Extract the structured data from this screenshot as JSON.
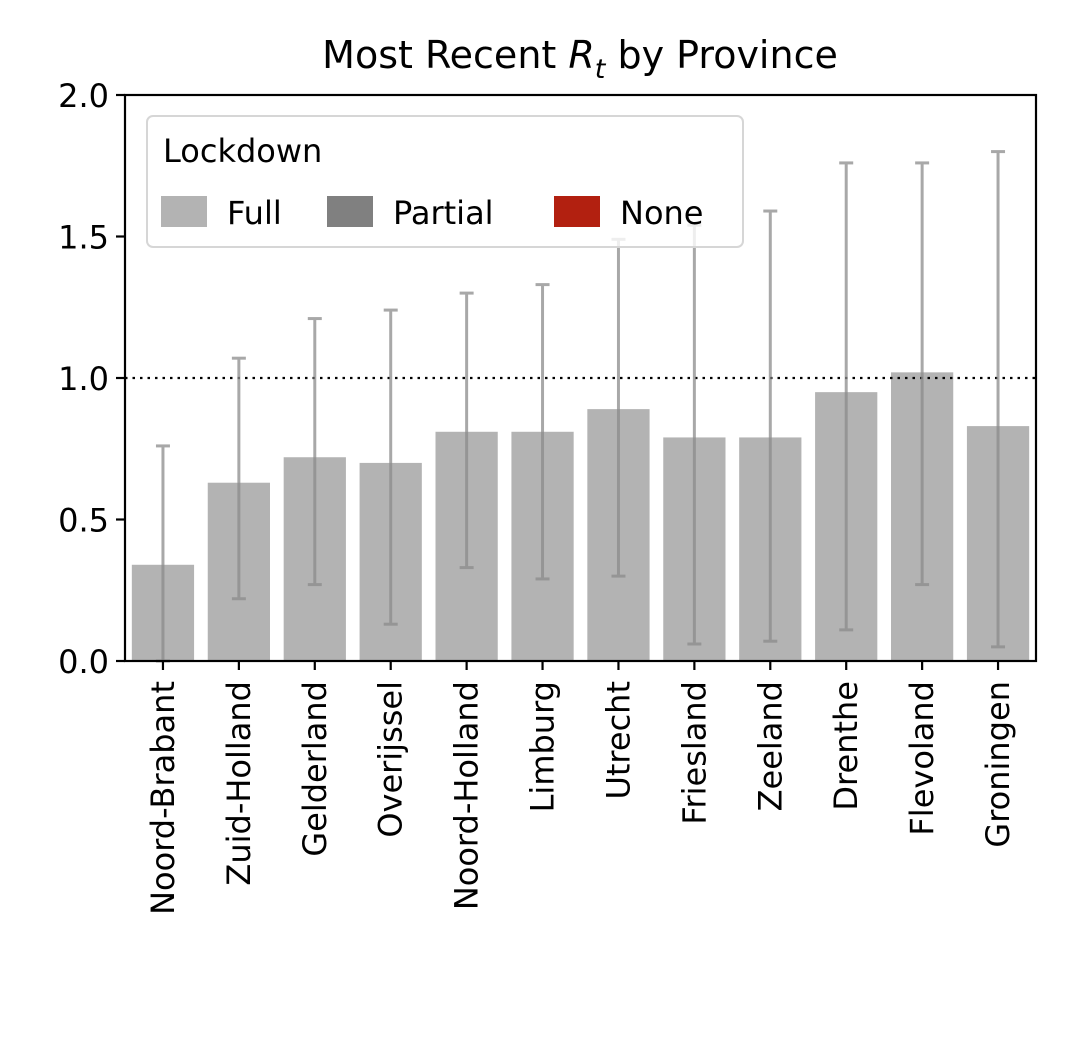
{
  "chart_data": {
    "type": "bar",
    "title": {
      "prefix": "Most Recent ",
      "symbol": "R",
      "subscript": "t",
      "suffix": " by Province"
    },
    "xlabel": "",
    "ylabel": "",
    "ylim": [
      0,
      2.0
    ],
    "yticks": [
      "0.0",
      "0.5",
      "1.0",
      "1.5",
      "2.0"
    ],
    "reference_line": {
      "y": 1.0,
      "style": "dotted"
    },
    "grid": false,
    "categories": [
      "Noord-Brabant",
      "Zuid-Holland",
      "Gelderland",
      "Overijssel",
      "Noord-Holland",
      "Limburg",
      "Utrecht",
      "Friesland",
      "Zeeland",
      "Drenthe",
      "Flevoland",
      "Groningen"
    ],
    "values": [
      0.34,
      0.63,
      0.72,
      0.7,
      0.81,
      0.81,
      0.89,
      0.79,
      0.79,
      0.95,
      1.02,
      0.83
    ],
    "error_low": [
      0.0,
      0.22,
      0.27,
      0.13,
      0.33,
      0.29,
      0.3,
      0.06,
      0.07,
      0.11,
      0.27,
      0.05
    ],
    "error_high": [
      0.76,
      1.07,
      1.21,
      1.24,
      1.3,
      1.33,
      1.49,
      1.54,
      1.59,
      1.76,
      1.76,
      1.8
    ],
    "lockdown": [
      "Full",
      "Full",
      "Full",
      "Full",
      "Full",
      "Full",
      "Full",
      "Full",
      "Full",
      "Full",
      "Full",
      "Full"
    ],
    "legend": {
      "title": "Lockdown",
      "placement": "top-left",
      "entries": [
        {
          "label": "Full",
          "color": "#b3b3b3"
        },
        {
          "label": "Partial",
          "color": "#808080"
        },
        {
          "label": "None",
          "color": "#b22010"
        }
      ]
    },
    "colors": {
      "Full": "#b3b3b3",
      "Partial": "#808080",
      "None": "#b22010",
      "errorbar": "#8c8c8c"
    }
  }
}
